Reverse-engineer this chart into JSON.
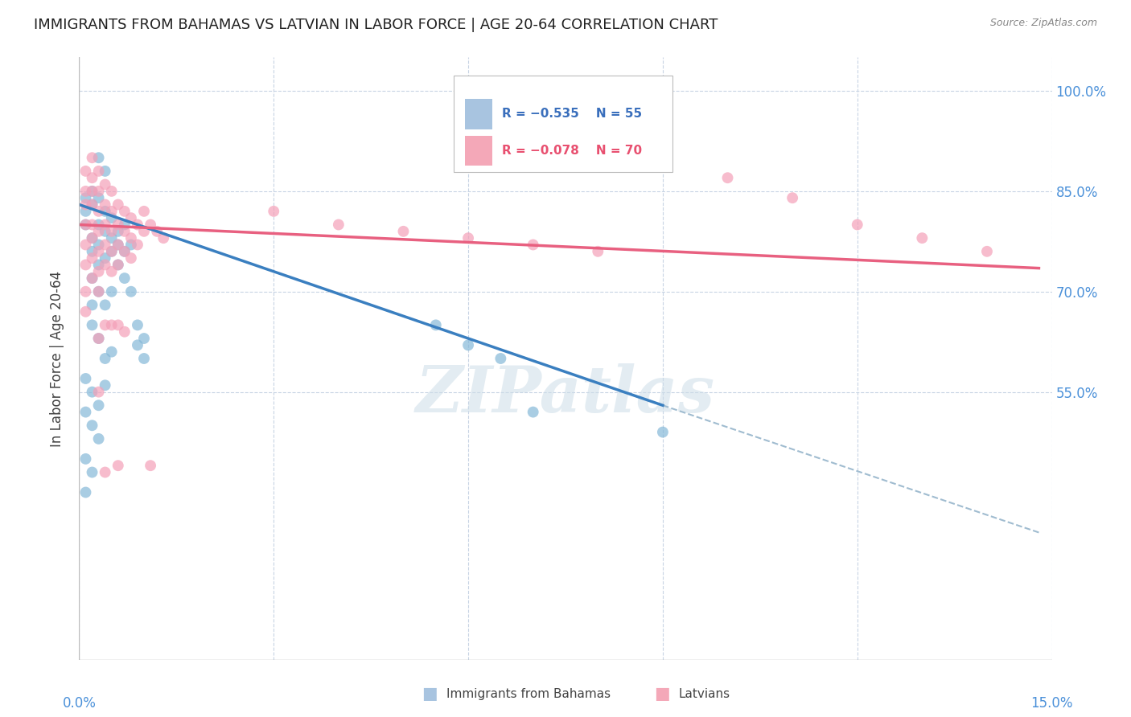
{
  "title": "IMMIGRANTS FROM BAHAMAS VS LATVIAN IN LABOR FORCE | AGE 20-64 CORRELATION CHART",
  "source": "Source: ZipAtlas.com",
  "ylabel": "In Labor Force | Age 20-64",
  "xlim": [
    0.0,
    0.15
  ],
  "ylim": [
    0.15,
    1.05
  ],
  "watermark": "ZIPatlas",
  "bahamas_scatter": [
    [
      0.001,
      0.84
    ],
    [
      0.001,
      0.82
    ],
    [
      0.001,
      0.8
    ],
    [
      0.002,
      0.85
    ],
    [
      0.002,
      0.83
    ],
    [
      0.002,
      0.78
    ],
    [
      0.002,
      0.76
    ],
    [
      0.003,
      0.84
    ],
    [
      0.003,
      0.8
    ],
    [
      0.003,
      0.77
    ],
    [
      0.003,
      0.74
    ],
    [
      0.004,
      0.82
    ],
    [
      0.004,
      0.79
    ],
    [
      0.004,
      0.75
    ],
    [
      0.005,
      0.81
    ],
    [
      0.005,
      0.78
    ],
    [
      0.005,
      0.76
    ],
    [
      0.006,
      0.79
    ],
    [
      0.006,
      0.77
    ],
    [
      0.007,
      0.8
    ],
    [
      0.007,
      0.76
    ],
    [
      0.008,
      0.77
    ],
    [
      0.002,
      0.72
    ],
    [
      0.003,
      0.7
    ],
    [
      0.004,
      0.68
    ],
    [
      0.005,
      0.7
    ],
    [
      0.002,
      0.65
    ],
    [
      0.003,
      0.63
    ],
    [
      0.004,
      0.6
    ],
    [
      0.005,
      0.61
    ],
    [
      0.001,
      0.57
    ],
    [
      0.002,
      0.55
    ],
    [
      0.003,
      0.53
    ],
    [
      0.004,
      0.56
    ],
    [
      0.001,
      0.52
    ],
    [
      0.002,
      0.5
    ],
    [
      0.003,
      0.48
    ],
    [
      0.001,
      0.45
    ],
    [
      0.002,
      0.43
    ],
    [
      0.001,
      0.4
    ],
    [
      0.003,
      0.9
    ],
    [
      0.004,
      0.88
    ],
    [
      0.002,
      0.68
    ],
    [
      0.006,
      0.74
    ],
    [
      0.007,
      0.72
    ],
    [
      0.008,
      0.7
    ],
    [
      0.009,
      0.65
    ],
    [
      0.009,
      0.62
    ],
    [
      0.01,
      0.63
    ],
    [
      0.01,
      0.6
    ],
    [
      0.055,
      0.65
    ],
    [
      0.06,
      0.62
    ],
    [
      0.065,
      0.6
    ],
    [
      0.07,
      0.52
    ],
    [
      0.09,
      0.49
    ]
  ],
  "latvian_scatter": [
    [
      0.001,
      0.88
    ],
    [
      0.001,
      0.85
    ],
    [
      0.001,
      0.83
    ],
    [
      0.001,
      0.8
    ],
    [
      0.001,
      0.77
    ],
    [
      0.001,
      0.74
    ],
    [
      0.001,
      0.7
    ],
    [
      0.001,
      0.67
    ],
    [
      0.002,
      0.9
    ],
    [
      0.002,
      0.87
    ],
    [
      0.002,
      0.85
    ],
    [
      0.002,
      0.83
    ],
    [
      0.002,
      0.8
    ],
    [
      0.002,
      0.78
    ],
    [
      0.002,
      0.75
    ],
    [
      0.002,
      0.72
    ],
    [
      0.003,
      0.88
    ],
    [
      0.003,
      0.85
    ],
    [
      0.003,
      0.82
    ],
    [
      0.003,
      0.79
    ],
    [
      0.003,
      0.76
    ],
    [
      0.003,
      0.73
    ],
    [
      0.003,
      0.7
    ],
    [
      0.003,
      0.63
    ],
    [
      0.003,
      0.55
    ],
    [
      0.004,
      0.86
    ],
    [
      0.004,
      0.83
    ],
    [
      0.004,
      0.8
    ],
    [
      0.004,
      0.77
    ],
    [
      0.004,
      0.74
    ],
    [
      0.004,
      0.65
    ],
    [
      0.004,
      0.43
    ],
    [
      0.005,
      0.85
    ],
    [
      0.005,
      0.82
    ],
    [
      0.005,
      0.79
    ],
    [
      0.005,
      0.76
    ],
    [
      0.005,
      0.73
    ],
    [
      0.005,
      0.65
    ],
    [
      0.006,
      0.83
    ],
    [
      0.006,
      0.8
    ],
    [
      0.006,
      0.77
    ],
    [
      0.006,
      0.74
    ],
    [
      0.006,
      0.65
    ],
    [
      0.006,
      0.44
    ],
    [
      0.007,
      0.82
    ],
    [
      0.007,
      0.79
    ],
    [
      0.007,
      0.76
    ],
    [
      0.007,
      0.64
    ],
    [
      0.008,
      0.81
    ],
    [
      0.008,
      0.78
    ],
    [
      0.008,
      0.75
    ],
    [
      0.009,
      0.8
    ],
    [
      0.009,
      0.77
    ],
    [
      0.01,
      0.82
    ],
    [
      0.01,
      0.79
    ],
    [
      0.011,
      0.8
    ],
    [
      0.011,
      0.44
    ],
    [
      0.012,
      0.79
    ],
    [
      0.013,
      0.78
    ],
    [
      0.1,
      0.87
    ],
    [
      0.11,
      0.84
    ],
    [
      0.12,
      0.8
    ],
    [
      0.13,
      0.78
    ],
    [
      0.14,
      0.76
    ],
    [
      0.03,
      0.82
    ],
    [
      0.04,
      0.8
    ],
    [
      0.05,
      0.79
    ],
    [
      0.06,
      0.78
    ],
    [
      0.07,
      0.77
    ],
    [
      0.08,
      0.76
    ]
  ],
  "bahamas_line_x": [
    0.0,
    0.09
  ],
  "bahamas_line_y": [
    0.83,
    0.53
  ],
  "dashed_line_x": [
    0.09,
    0.148
  ],
  "dashed_line_y": [
    0.53,
    0.34
  ],
  "latvian_line_x": [
    0.0,
    0.148
  ],
  "latvian_line_y": [
    0.8,
    0.735
  ],
  "bahamas_color": "#85b8d8",
  "latvian_color": "#f4a0b8",
  "bahamas_line_color": "#3a7fc0",
  "latvian_line_color": "#e86080",
  "dashed_line_color": "#a0bcd0",
  "axis_label_color": "#4a90d9",
  "scatter_size": 100,
  "title_fontsize": 13,
  "legend_R1": "R = −0.535",
  "legend_N1": "N = 55",
  "legend_R2": "R = −0.078",
  "legend_N2": "N = 70",
  "legend_color1": "#a8c4e0",
  "legend_color2": "#f4a8b8",
  "legend_text_color1": "#3a6fbc",
  "legend_text_color2": "#e85070"
}
